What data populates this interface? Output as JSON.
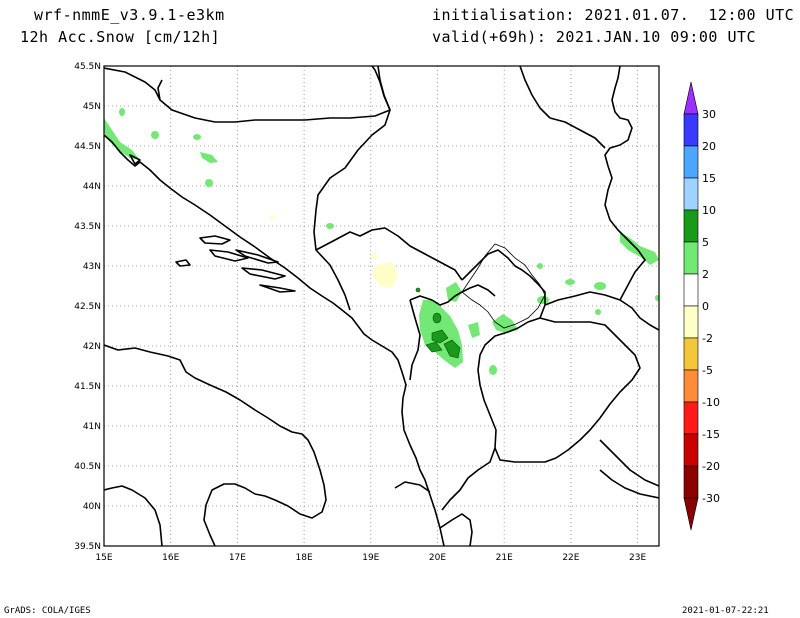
{
  "header": {
    "model": "wrf-nmmE_v3.9.1-e3km",
    "field": "12h Acc.Snow [cm/12h]",
    "init": "initialisation: 2021.01.07.  12:00 UTC",
    "valid": "valid(+69h): 2021.JAN.10 09:00 UTC"
  },
  "footer": {
    "credit": "GrADS: COLA/IGES",
    "timestamp": "2021-01-07-22:21"
  },
  "map": {
    "lon_labels": [
      "15E",
      "16E",
      "17E",
      "18E",
      "19E",
      "20E",
      "21E",
      "22E",
      "23E"
    ],
    "lat_labels": [
      "45.5N",
      "45N",
      "44.5N",
      "44N",
      "43.5N",
      "43N",
      "42.5N",
      "42N",
      "41.5N",
      "41N",
      "40.5N",
      "40N",
      "39.5N"
    ]
  },
  "colorbar": {
    "labels": [
      "30",
      "20",
      "15",
      "10",
      "5",
      "2",
      "0",
      "-2",
      "-5",
      "-10",
      "-15",
      "-20",
      "-30"
    ],
    "colors": [
      "#9b30ff",
      "#3a3aff",
      "#4da6ff",
      "#9fd2ff",
      "#1a9a1a",
      "#74e874",
      "#ffffff",
      "#ffffc8",
      "#f2c83a",
      "#ff8c3a",
      "#ff1a1a",
      "#c80000",
      "#8b0000"
    ]
  }
}
